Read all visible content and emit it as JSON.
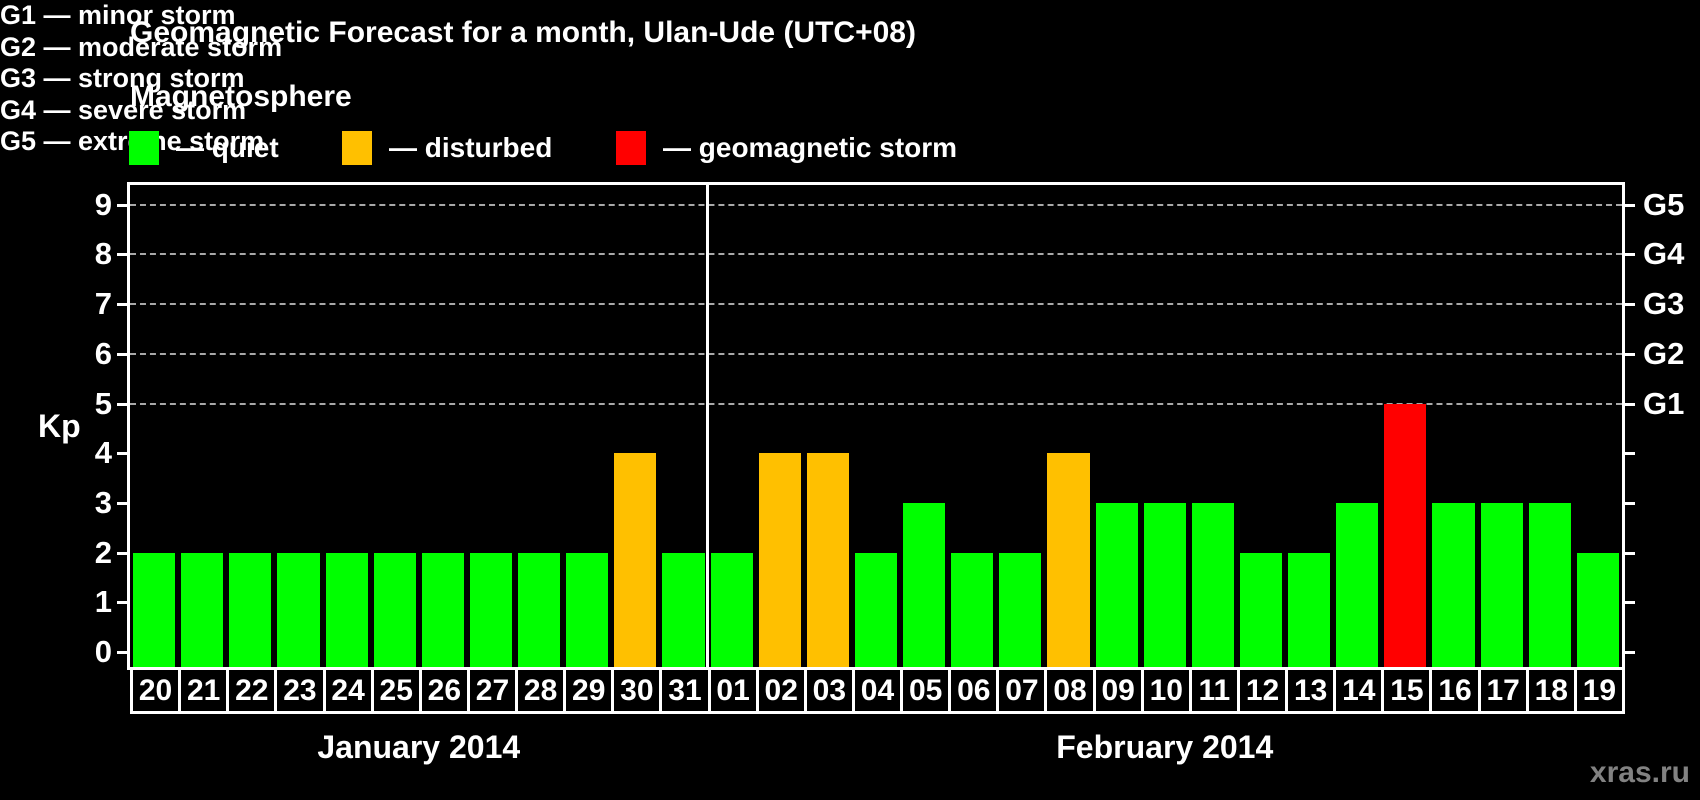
{
  "subtitle": "Magnetosphere",
  "watermark": "xras.ru",
  "colors": {
    "quiet": "#00ff00",
    "disturbed": "#ffc000",
    "storm": "#ff0000",
    "grid": "#a8a8a8",
    "axis": "#ffffff",
    "watermark_gray": "#828282"
  },
  "legend": {
    "items": [
      {
        "key": "quiet",
        "label": "— quiet"
      },
      {
        "key": "disturbed",
        "label": "— disturbed"
      },
      {
        "key": "storm",
        "label": "— geomagnetic storm"
      }
    ]
  },
  "g_legend": [
    "G1 — minor storm",
    "G2 — moderate storm",
    "G3 — strong storm",
    "G4 — severe storm",
    "G5 — extreme storm"
  ],
  "chart_data": {
    "type": "bar",
    "title": "Geomagnetic Forecast for a month, Ulan-Ude (UTC+08)",
    "ylabel": "Kp",
    "ylim": [
      0,
      9
    ],
    "y_ticks": [
      0,
      1,
      2,
      3,
      4,
      5,
      6,
      7,
      8,
      9
    ],
    "grid_levels": [
      5,
      6,
      7,
      8,
      9
    ],
    "legend_position": "top",
    "right_axis": [
      {
        "label": "G1",
        "kp": 5
      },
      {
        "label": "G2",
        "kp": 6
      },
      {
        "label": "G3",
        "kp": 7
      },
      {
        "label": "G4",
        "kp": 8
      },
      {
        "label": "G5",
        "kp": 9
      }
    ],
    "months": [
      {
        "label": "January 2014",
        "days": [
          {
            "d": "20",
            "kp": 2,
            "status": "quiet"
          },
          {
            "d": "21",
            "kp": 2,
            "status": "quiet"
          },
          {
            "d": "22",
            "kp": 2,
            "status": "quiet"
          },
          {
            "d": "23",
            "kp": 2,
            "status": "quiet"
          },
          {
            "d": "24",
            "kp": 2,
            "status": "quiet"
          },
          {
            "d": "25",
            "kp": 2,
            "status": "quiet"
          },
          {
            "d": "26",
            "kp": 2,
            "status": "quiet"
          },
          {
            "d": "27",
            "kp": 2,
            "status": "quiet"
          },
          {
            "d": "28",
            "kp": 2,
            "status": "quiet"
          },
          {
            "d": "29",
            "kp": 2,
            "status": "quiet"
          },
          {
            "d": "30",
            "kp": 4,
            "status": "disturbed"
          },
          {
            "d": "31",
            "kp": 2,
            "status": "quiet"
          }
        ]
      },
      {
        "label": "February 2014",
        "days": [
          {
            "d": "01",
            "kp": 2,
            "status": "quiet"
          },
          {
            "d": "02",
            "kp": 4,
            "status": "disturbed"
          },
          {
            "d": "03",
            "kp": 4,
            "status": "disturbed"
          },
          {
            "d": "04",
            "kp": 2,
            "status": "quiet"
          },
          {
            "d": "05",
            "kp": 3,
            "status": "quiet"
          },
          {
            "d": "06",
            "kp": 2,
            "status": "quiet"
          },
          {
            "d": "07",
            "kp": 2,
            "status": "quiet"
          },
          {
            "d": "08",
            "kp": 4,
            "status": "disturbed"
          },
          {
            "d": "09",
            "kp": 3,
            "status": "quiet"
          },
          {
            "d": "10",
            "kp": 3,
            "status": "quiet"
          },
          {
            "d": "11",
            "kp": 3,
            "status": "quiet"
          },
          {
            "d": "12",
            "kp": 2,
            "status": "quiet"
          },
          {
            "d": "13",
            "kp": 2,
            "status": "quiet"
          },
          {
            "d": "14",
            "kp": 3,
            "status": "quiet"
          },
          {
            "d": "15",
            "kp": 5,
            "status": "storm"
          },
          {
            "d": "16",
            "kp": 3,
            "status": "quiet"
          },
          {
            "d": "17",
            "kp": 3,
            "status": "quiet"
          },
          {
            "d": "18",
            "kp": 3,
            "status": "quiet"
          },
          {
            "d": "19",
            "kp": 2,
            "status": "quiet"
          }
        ]
      }
    ]
  }
}
